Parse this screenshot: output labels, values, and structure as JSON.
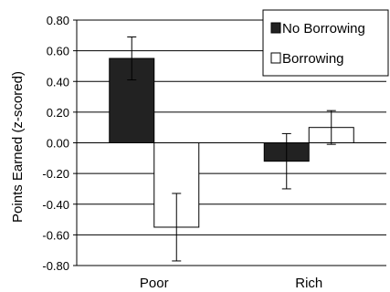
{
  "chart_data": {
    "type": "bar",
    "title": "",
    "xlabel": "",
    "ylabel": "Points Earned (z-scored)",
    "categories": [
      "Poor",
      "Rich"
    ],
    "series": [
      {
        "name": "No Borrowing",
        "values": [
          0.55,
          -0.12
        ],
        "error": [
          0.14,
          0.18
        ],
        "color": "#222222"
      },
      {
        "name": "Borrowing",
        "values": [
          -0.55,
          0.1
        ],
        "error": [
          0.22,
          0.11
        ],
        "color": "#ffffff"
      }
    ],
    "ylim": [
      -0.8,
      0.8
    ],
    "yticks": [
      "0.80",
      "0.60",
      "0.40",
      "0.20",
      "0.00",
      "-0.20",
      "-0.40",
      "-0.60",
      "-0.80"
    ],
    "grid": true,
    "error_bars": true,
    "legend_position": "top-right"
  }
}
